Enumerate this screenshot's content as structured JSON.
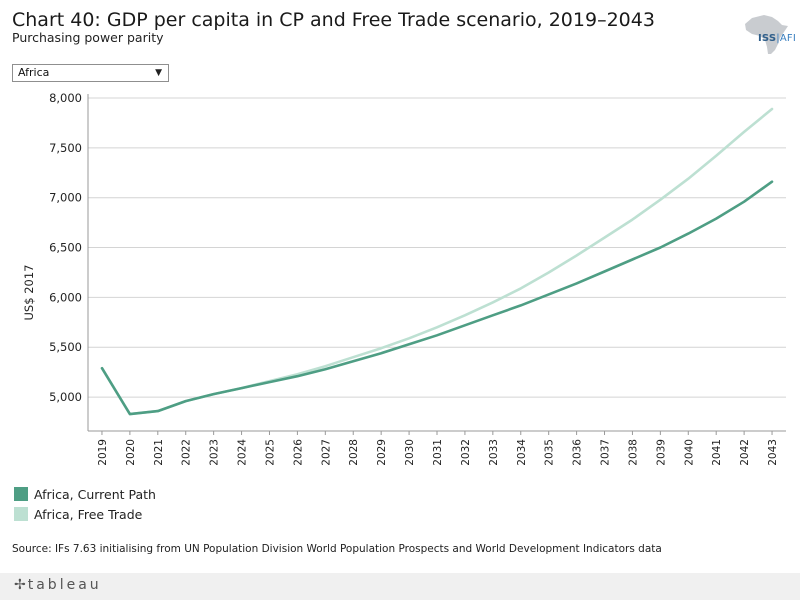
{
  "header": {
    "title": "Chart 40: GDP per capita in CP and Free Trade scenario, 2019–2043",
    "subtitle": "Purchasing power parity"
  },
  "logo": {
    "primary": "ISS",
    "secondary": "AFI"
  },
  "filter": {
    "selected": "Africa"
  },
  "chart_data": {
    "type": "line",
    "title": "Chart 40: GDP per capita in CP and Free Trade scenario, 2019–2043",
    "subtitle": "Purchasing power parity",
    "xlabel": "",
    "ylabel": "US$ 2017",
    "ylim": [
      4660,
      8040
    ],
    "yticks": [
      5000,
      5500,
      6000,
      6500,
      7000,
      7500,
      8000
    ],
    "ytick_labels": [
      "5,000",
      "5,500",
      "6,000",
      "6,500",
      "7,000",
      "7,500",
      "8,000"
    ],
    "grid": true,
    "x": [
      "2019",
      "2020",
      "2021",
      "2022",
      "2023",
      "2024",
      "2025",
      "2026",
      "2027",
      "2028",
      "2029",
      "2030",
      "2031",
      "2032",
      "2033",
      "2034",
      "2035",
      "2036",
      "2037",
      "2038",
      "2039",
      "2040",
      "2041",
      "2042",
      "2043"
    ],
    "series": [
      {
        "name": "Africa, Current Path",
        "color": "#4e9e84",
        "values": [
          5290,
          4830,
          4860,
          4960,
          5030,
          5090,
          5150,
          5210,
          5280,
          5360,
          5440,
          5530,
          5620,
          5720,
          5820,
          5920,
          6030,
          6140,
          6260,
          6380,
          6500,
          6640,
          6790,
          6960,
          7160
        ]
      },
      {
        "name": "Africa, Free Trade",
        "color": "#bde0d2",
        "values": [
          5290,
          4830,
          4860,
          4960,
          5030,
          5090,
          5160,
          5230,
          5310,
          5400,
          5490,
          5590,
          5700,
          5820,
          5950,
          6090,
          6250,
          6420,
          6600,
          6780,
          6980,
          7190,
          7420,
          7660,
          7890
        ]
      }
    ]
  },
  "source": "Source: IFs 7.63 initialising from UN Population Division World Population Prospects and World Development Indicators data",
  "footer": {
    "brand": "tableau"
  }
}
